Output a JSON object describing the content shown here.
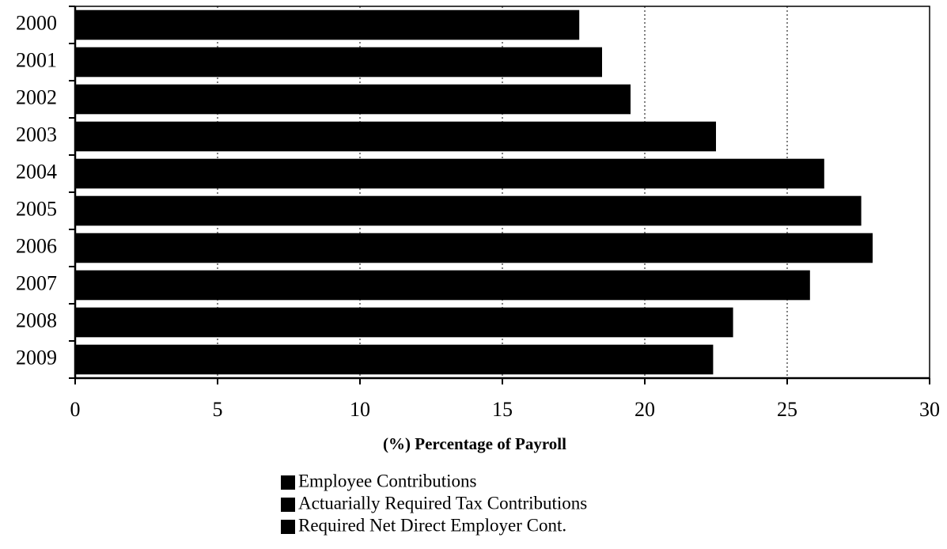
{
  "chart_data": {
    "type": "hbar",
    "x_label": "(%) Percentage of Payroll",
    "categories": [
      "2000",
      "2001",
      "2002",
      "2003",
      "2004",
      "2005",
      "2006",
      "2007",
      "2008",
      "2009"
    ],
    "values": [
      17.7,
      18.5,
      19.5,
      22.5,
      26.3,
      27.6,
      28.0,
      25.8,
      23.1,
      22.4
    ],
    "color": "#000000",
    "legend": [
      {
        "name": "Employee Contributions",
        "color": "#000000"
      },
      {
        "name": "Actuarially Required Tax Contributions",
        "color": "#000000"
      },
      {
        "name": "Required Net Direct Employer Cont.",
        "color": "#000000"
      }
    ],
    "xlim": [
      0,
      30
    ],
    "xticks": [
      0,
      5,
      10,
      15,
      20,
      25,
      30
    ],
    "grid": true
  }
}
